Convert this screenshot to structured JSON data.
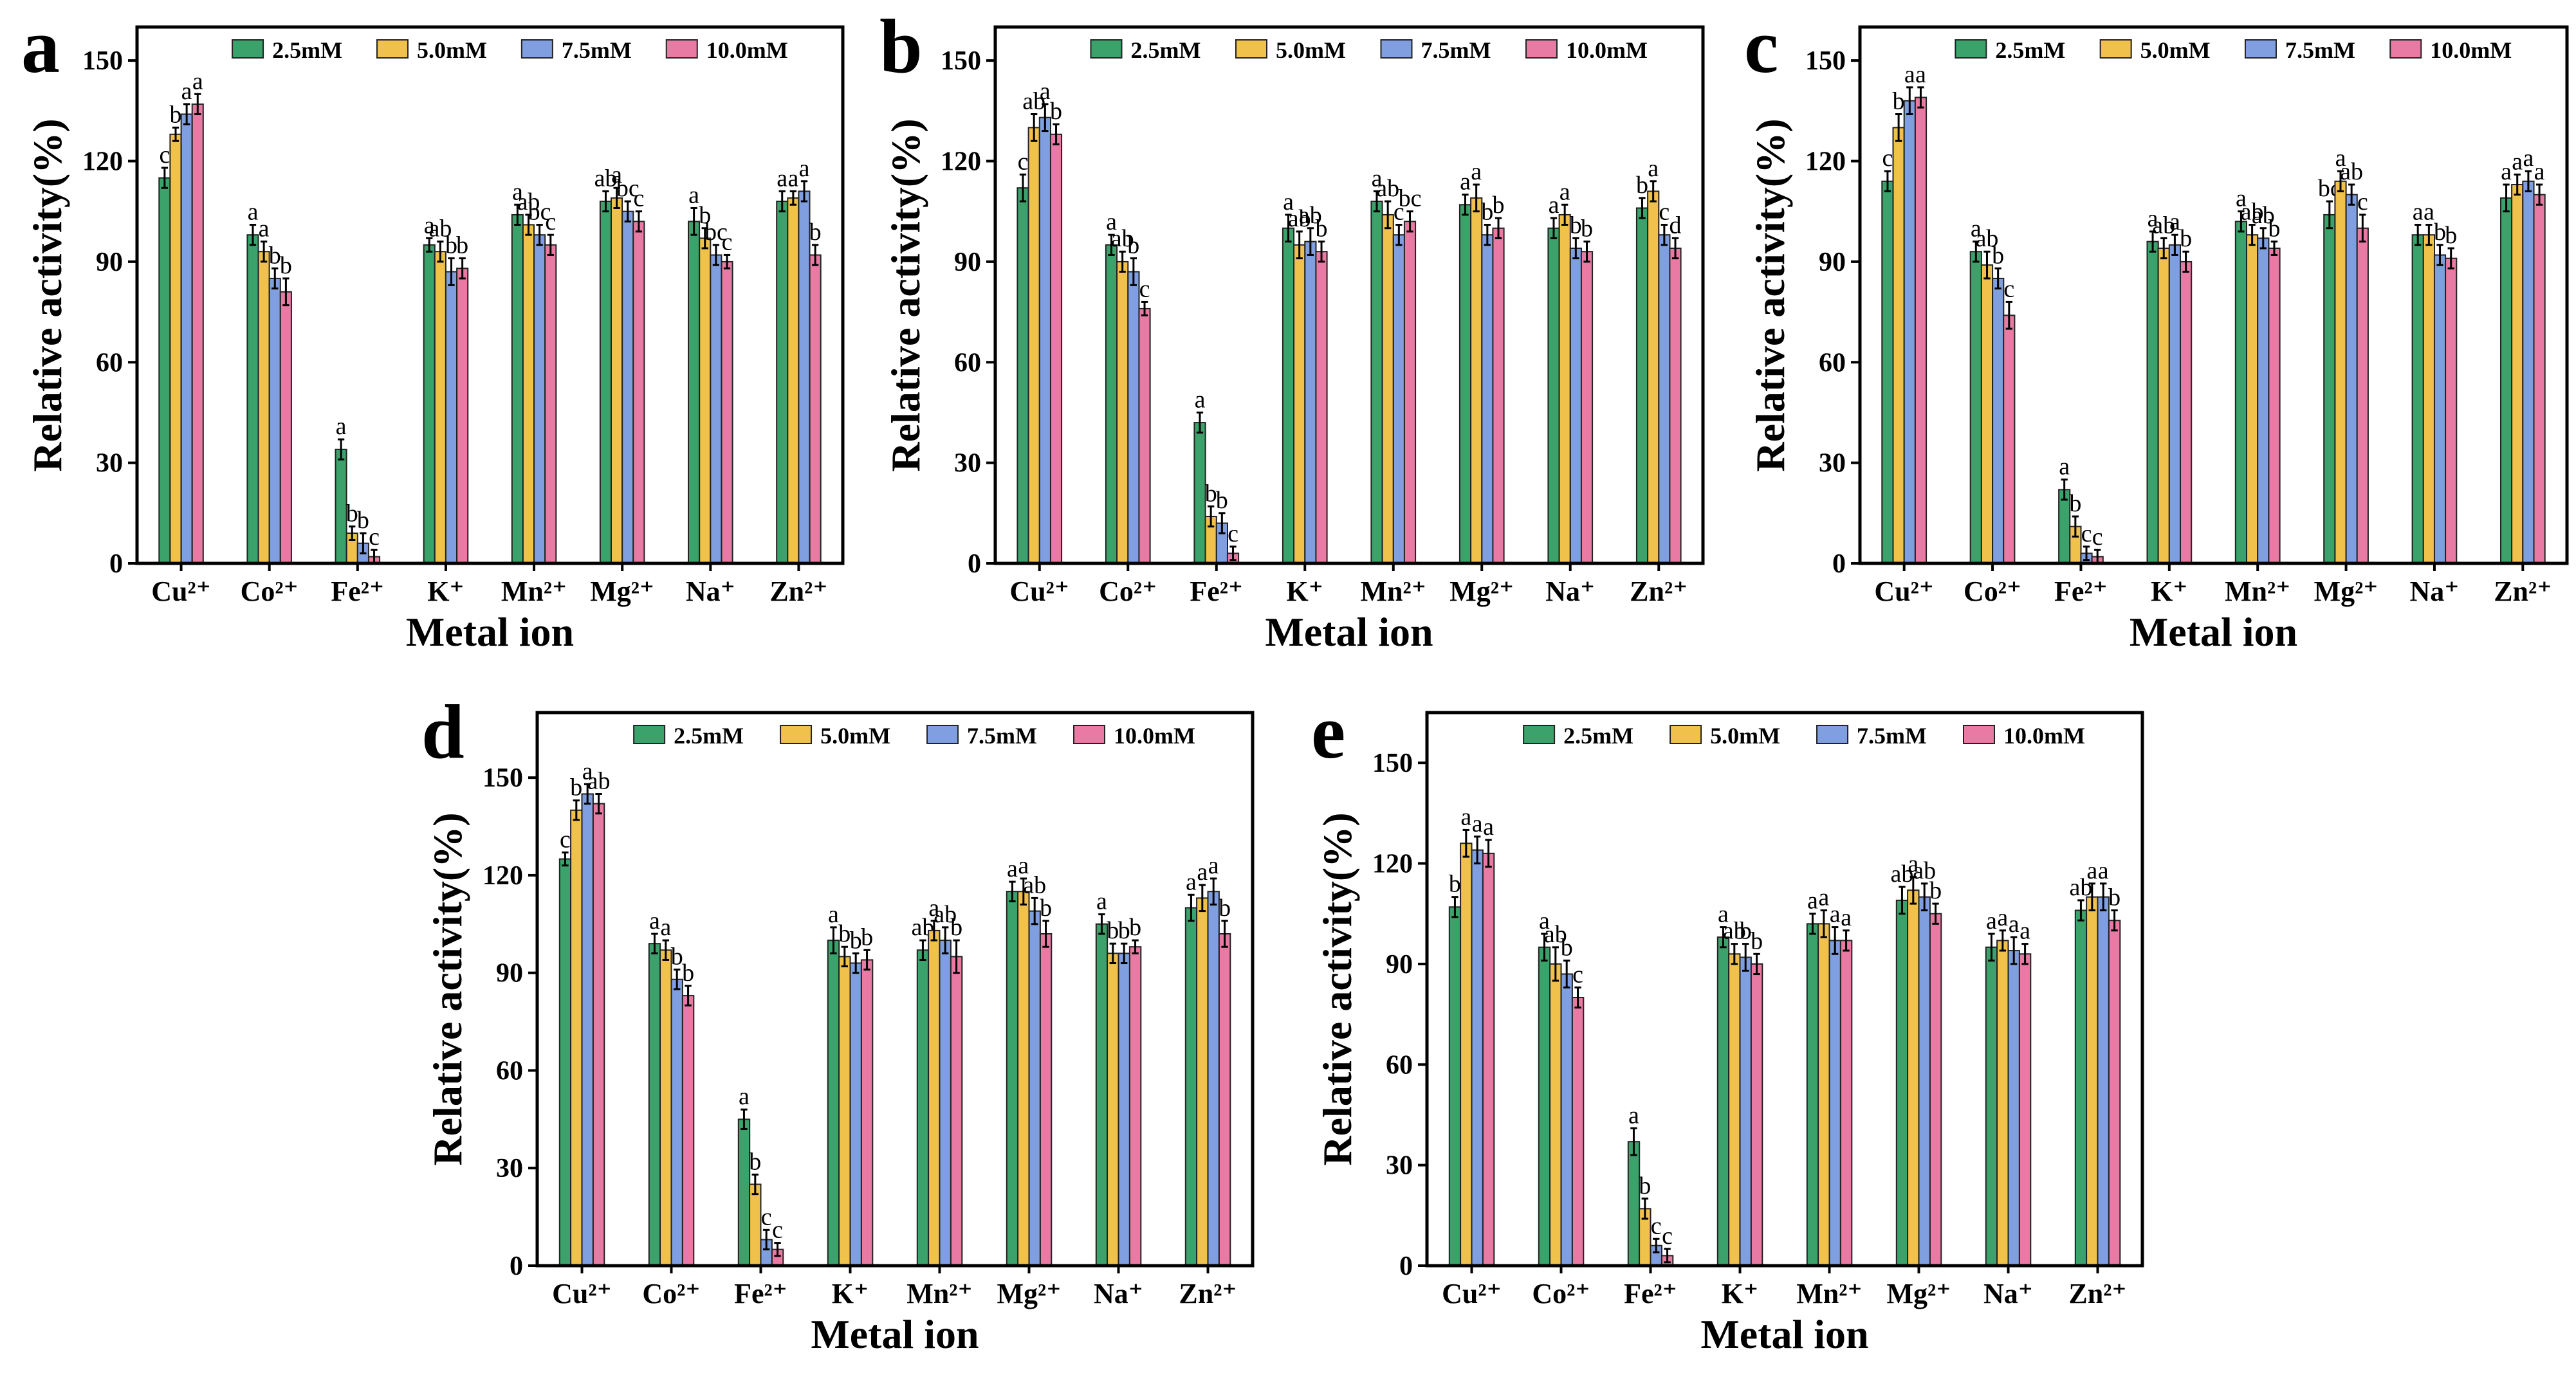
{
  "chart_data": [
    {
      "type": "bar",
      "panel": "a",
      "xlabel": "Metal ion",
      "ylabel": "Relative activity(%)",
      "ylim": [
        0,
        160
      ],
      "yticks": [
        "0",
        "30",
        "60",
        "90",
        "120",
        "150"
      ],
      "categories": [
        "Cu²⁺",
        "Co²⁺",
        "Fe²⁺",
        "K⁺",
        "Mn²⁺",
        "Mg²⁺",
        "Na⁺",
        "Zn²⁺"
      ],
      "legend_position": "top",
      "series": [
        {
          "name": "2.5mM",
          "color": "#3aa26a",
          "values": [
            115,
            98,
            34,
            95,
            104,
            108,
            102,
            108
          ],
          "errors": [
            3,
            3,
            3,
            2,
            3,
            3,
            4,
            3
          ],
          "labels": [
            "c",
            "a",
            "a",
            "a",
            "a",
            "ab",
            "a",
            "a"
          ]
        },
        {
          "name": "5.0mM",
          "color": "#f1c24b",
          "values": [
            128,
            93,
            9,
            93,
            101,
            109,
            97,
            109
          ],
          "errors": [
            2,
            3,
            2,
            3,
            3,
            3,
            3,
            2
          ],
          "labels": [
            "b",
            "a",
            "b",
            "ab",
            "ab",
            "a",
            "b",
            "a"
          ]
        },
        {
          "name": "7.5mM",
          "color": "#7f9fe0",
          "values": [
            134,
            85,
            6,
            87,
            98,
            105,
            92,
            111
          ],
          "errors": [
            3,
            3,
            3,
            4,
            3,
            3,
            3,
            3
          ],
          "labels": [
            "a",
            "b",
            "b",
            "b",
            "bc",
            "bc",
            "bc",
            "a"
          ]
        },
        {
          "name": "10.0mM",
          "color": "#e97aa3",
          "values": [
            137,
            81,
            2,
            88,
            95,
            102,
            90,
            92
          ],
          "errors": [
            3,
            4,
            2,
            3,
            3,
            3,
            2,
            3
          ],
          "labels": [
            "a",
            "b",
            "c",
            "b",
            "c",
            "c",
            "c",
            "b"
          ]
        }
      ]
    },
    {
      "type": "bar",
      "panel": "b",
      "xlabel": "Metal ion",
      "ylabel": "Relative activity(%)",
      "ylim": [
        0,
        160
      ],
      "yticks": [
        "0",
        "30",
        "60",
        "90",
        "120",
        "150"
      ],
      "categories": [
        "Cu²⁺",
        "Co²⁺",
        "Fe²⁺",
        "K⁺",
        "Mn²⁺",
        "Mg²⁺",
        "Na⁺",
        "Zn²⁺"
      ],
      "legend_position": "top",
      "series": [
        {
          "name": "2.5mM",
          "color": "#3aa26a",
          "values": [
            112,
            95,
            42,
            100,
            108,
            107,
            100,
            106
          ],
          "errors": [
            4,
            3,
            3,
            4,
            3,
            3,
            3,
            3
          ],
          "labels": [
            "c",
            "a",
            "a",
            "a",
            "a",
            "a",
            "a",
            "b"
          ]
        },
        {
          "name": "5.0mM",
          "color": "#f1c24b",
          "values": [
            130,
            90,
            14,
            95,
            104,
            109,
            104,
            111
          ],
          "errors": [
            4,
            3,
            3,
            4,
            4,
            4,
            3,
            3
          ],
          "labels": [
            "ab",
            "ab",
            "b",
            "ab",
            "ab",
            "a",
            "a",
            "a"
          ]
        },
        {
          "name": "7.5mM",
          "color": "#7f9fe0",
          "values": [
            133,
            87,
            12,
            96,
            98,
            98,
            94,
            98
          ],
          "errors": [
            4,
            4,
            3,
            4,
            3,
            3,
            3,
            3
          ],
          "labels": [
            "a",
            "b",
            "b",
            "ab",
            "c",
            "b",
            "b",
            "c"
          ]
        },
        {
          "name": "10.0mM",
          "color": "#e97aa3",
          "values": [
            128,
            76,
            3,
            93,
            102,
            100,
            93,
            94
          ],
          "errors": [
            3,
            2,
            2,
            3,
            3,
            3,
            3,
            3
          ],
          "labels": [
            "b",
            "c",
            "c",
            "b",
            "bc",
            "b",
            "b",
            "d"
          ]
        }
      ]
    },
    {
      "type": "bar",
      "panel": "c",
      "xlabel": "Metal ion",
      "ylabel": "Relative activity(%)",
      "ylim": [
        0,
        160
      ],
      "yticks": [
        "0",
        "30",
        "60",
        "90",
        "120",
        "150"
      ],
      "categories": [
        "Cu²⁺",
        "Co²⁺",
        "Fe²⁺",
        "K⁺",
        "Mn²⁺",
        "Mg²⁺",
        "Na⁺",
        "Zn²⁺"
      ],
      "legend_position": "top",
      "series": [
        {
          "name": "2.5mM",
          "color": "#3aa26a",
          "values": [
            114,
            93,
            22,
            96,
            102,
            104,
            98,
            109
          ],
          "errors": [
            3,
            3,
            3,
            3,
            3,
            4,
            3,
            4
          ],
          "labels": [
            "c",
            "a",
            "a",
            "a",
            "a",
            "bc",
            "a",
            "a"
          ]
        },
        {
          "name": "5.0mM",
          "color": "#f1c24b",
          "values": [
            130,
            89,
            11,
            94,
            98,
            114,
            98,
            113
          ],
          "errors": [
            4,
            4,
            3,
            3,
            3,
            3,
            3,
            3
          ],
          "labels": [
            "b",
            "ab",
            "b",
            "ab",
            "ab",
            "a",
            "a",
            "a"
          ]
        },
        {
          "name": "7.5mM",
          "color": "#7f9fe0",
          "values": [
            138,
            85,
            3,
            95,
            97,
            110,
            92,
            114
          ],
          "errors": [
            4,
            3,
            2,
            3,
            3,
            3,
            3,
            3
          ],
          "labels": [
            "a",
            "b",
            "c",
            "a",
            "ab",
            "ab",
            "b",
            "a"
          ]
        },
        {
          "name": "10.0mM",
          "color": "#e97aa3",
          "values": [
            139,
            74,
            2,
            90,
            94,
            100,
            91,
            110
          ],
          "errors": [
            3,
            4,
            2,
            3,
            2,
            4,
            3,
            3
          ],
          "labels": [
            "a",
            "c",
            "c",
            "b",
            "b",
            "c",
            "b",
            "a"
          ]
        }
      ]
    },
    {
      "type": "bar",
      "panel": "d",
      "xlabel": "Metal ion",
      "ylabel": "Relative activity(%)",
      "ylim": [
        0,
        170
      ],
      "yticks": [
        "0",
        "30",
        "60",
        "90",
        "120",
        "150"
      ],
      "categories": [
        "Cu²⁺",
        "Co²⁺",
        "Fe²⁺",
        "K⁺",
        "Mn²⁺",
        "Mg²⁺",
        "Na⁺",
        "Zn²⁺"
      ],
      "legend_position": "top",
      "series": [
        {
          "name": "2.5mM",
          "color": "#3aa26a",
          "values": [
            125,
            99,
            45,
            100,
            97,
            115,
            105,
            110
          ],
          "errors": [
            2,
            3,
            3,
            4,
            3,
            3,
            3,
            4
          ],
          "labels": [
            "c",
            "a",
            "a",
            "a",
            "ab",
            "a",
            "a",
            "a"
          ]
        },
        {
          "name": "5.0mM",
          "color": "#f1c24b",
          "values": [
            140,
            97,
            25,
            95,
            103,
            115,
            96,
            113
          ],
          "errors": [
            3,
            3,
            3,
            3,
            3,
            4,
            3,
            4
          ],
          "labels": [
            "b",
            "a",
            "b",
            "b",
            "a",
            "a",
            "b",
            "a"
          ]
        },
        {
          "name": "7.5mM",
          "color": "#7f9fe0",
          "values": [
            145,
            88,
            8,
            93,
            100,
            109,
            96,
            115
          ],
          "errors": [
            3,
            3,
            3,
            3,
            4,
            4,
            3,
            4
          ],
          "labels": [
            "a",
            "b",
            "c",
            "b",
            "ab",
            "ab",
            "b",
            "a"
          ]
        },
        {
          "name": "10.0mM",
          "color": "#e97aa3",
          "values": [
            142,
            83,
            5,
            94,
            95,
            102,
            98,
            102
          ],
          "errors": [
            3,
            3,
            2,
            3,
            5,
            4,
            2,
            4
          ],
          "labels": [
            "ab",
            "b",
            "c",
            "b",
            "b",
            "b",
            "b",
            "b"
          ]
        }
      ]
    },
    {
      "type": "bar",
      "panel": "e",
      "xlabel": "Metal ion",
      "ylabel": "Relative activity(%)",
      "ylim": [
        0,
        165
      ],
      "yticks": [
        "0",
        "30",
        "60",
        "90",
        "120",
        "150"
      ],
      "categories": [
        "Cu²⁺",
        "Co²⁺",
        "Fe²⁺",
        "K⁺",
        "Mn²⁺",
        "Mg²⁺",
        "Na⁺",
        "Zn²⁺"
      ],
      "legend_position": "top",
      "series": [
        {
          "name": "2.5mM",
          "color": "#3aa26a",
          "values": [
            107,
            95,
            37,
            98,
            102,
            109,
            95,
            106
          ],
          "errors": [
            3,
            4,
            4,
            3,
            3,
            4,
            4,
            3
          ],
          "labels": [
            "b",
            "a",
            "a",
            "a",
            "a",
            "ab",
            "a",
            "ab"
          ]
        },
        {
          "name": "5.0mM",
          "color": "#f1c24b",
          "values": [
            126,
            90,
            17,
            93,
            102,
            112,
            97,
            110
          ],
          "errors": [
            4,
            5,
            3,
            3,
            4,
            4,
            3,
            4
          ],
          "labels": [
            "a",
            "ab",
            "b",
            "ab",
            "a",
            "a",
            "a",
            "a"
          ]
        },
        {
          "name": "7.5mM",
          "color": "#7f9fe0",
          "values": [
            124,
            87,
            6,
            92,
            97,
            110,
            94,
            110
          ],
          "errors": [
            4,
            4,
            2,
            4,
            4,
            4,
            4,
            4
          ],
          "labels": [
            "a",
            "b",
            "c",
            "b",
            "a",
            "ab",
            "a",
            "a"
          ]
        },
        {
          "name": "10.0mM",
          "color": "#e97aa3",
          "values": [
            123,
            80,
            3,
            90,
            97,
            105,
            93,
            103
          ],
          "errors": [
            4,
            3,
            2,
            3,
            3,
            3,
            3,
            3
          ],
          "labels": [
            "a",
            "c",
            "c",
            "b",
            "a",
            "b",
            "a",
            "b"
          ]
        }
      ]
    }
  ]
}
